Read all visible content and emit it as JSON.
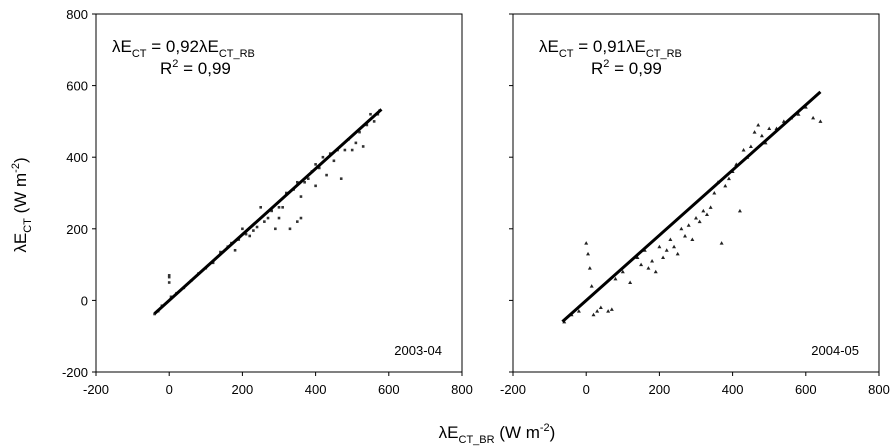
{
  "figure": {
    "ylabel": "λE",
    "ylabel_sub": "CT",
    "ylabel_unit": " (W m",
    "ylabel_unit_sup": "-2",
    "ylabel_close": ")",
    "xlabel": "λE",
    "xlabel_sub": "CT_BR",
    "xlabel_unit": " (W m",
    "xlabel_unit_sup": "-2",
    "xlabel_close": ")"
  },
  "chart_data": [
    {
      "type": "scatter",
      "title": "2003-04",
      "equation": {
        "lhs": "λE",
        "lhs_sub": "CT",
        "mid": " = 0,92λE",
        "rhs_sub": "CT_RB"
      },
      "r2": {
        "pre": "R",
        "sup": "2",
        "post": " = 0,99"
      },
      "xlim": [
        -200,
        800
      ],
      "ylim": [
        -200,
        800
      ],
      "xticks": [
        -200,
        0,
        200,
        400,
        600,
        800
      ],
      "yticks": [
        -200,
        0,
        200,
        400,
        600,
        800
      ],
      "fit_line": {
        "slope": 0.92,
        "x": [
          -40,
          580
        ]
      },
      "series": [
        {
          "marker": "dot",
          "points": [
            [
              -40,
              -38
            ],
            [
              -30,
              -30
            ],
            [
              -20,
              -15
            ],
            [
              0,
              65
            ],
            [
              0,
              70
            ],
            [
              0,
              50
            ],
            [
              5,
              10
            ],
            [
              20,
              20
            ],
            [
              40,
              35
            ],
            [
              60,
              55
            ],
            [
              80,
              75
            ],
            [
              100,
              90
            ],
            [
              120,
              105
            ],
            [
              140,
              135
            ],
            [
              160,
              150
            ],
            [
              170,
              160
            ],
            [
              180,
              140
            ],
            [
              190,
              170
            ],
            [
              200,
              200
            ],
            [
              210,
              185
            ],
            [
              220,
              180
            ],
            [
              230,
              195
            ],
            [
              240,
              205
            ],
            [
              250,
              260
            ],
            [
              260,
              220
            ],
            [
              270,
              230
            ],
            [
              280,
              250
            ],
            [
              290,
              200
            ],
            [
              300,
              260
            ],
            [
              300,
              230
            ],
            [
              310,
              260
            ],
            [
              320,
              300
            ],
            [
              330,
              200
            ],
            [
              340,
              310
            ],
            [
              350,
              330
            ],
            [
              350,
              220
            ],
            [
              360,
              290
            ],
            [
              360,
              230
            ],
            [
              370,
              330
            ],
            [
              380,
              340
            ],
            [
              390,
              360
            ],
            [
              400,
              380
            ],
            [
              400,
              320
            ],
            [
              410,
              370
            ],
            [
              420,
              400
            ],
            [
              430,
              350
            ],
            [
              440,
              410
            ],
            [
              450,
              390
            ],
            [
              460,
              420
            ],
            [
              470,
              340
            ],
            [
              480,
              420
            ],
            [
              490,
              450
            ],
            [
              500,
              420
            ],
            [
              510,
              440
            ],
            [
              520,
              470
            ],
            [
              530,
              430
            ],
            [
              540,
              490
            ],
            [
              550,
              520
            ],
            [
              560,
              500
            ],
            [
              570,
              520
            ],
            [
              575,
              530
            ]
          ]
        }
      ]
    },
    {
      "type": "scatter",
      "title": "2004-05",
      "equation": {
        "lhs": "λE",
        "lhs_sub": "CT",
        "mid": " = 0,91λE",
        "rhs_sub": "CT_RB"
      },
      "r2": {
        "pre": "R",
        "sup": "2",
        "post": " = 0,99"
      },
      "xlim": [
        -200,
        800
      ],
      "ylim": [
        -200,
        800
      ],
      "xticks": [
        -200,
        0,
        200,
        400,
        600,
        800
      ],
      "yticks": [
        -200,
        0,
        200,
        400,
        600,
        800
      ],
      "fit_line": {
        "slope": 0.91,
        "x": [
          -65,
          640
        ]
      },
      "series": [
        {
          "marker": "triangle",
          "points": [
            [
              -60,
              -60
            ],
            [
              -40,
              -40
            ],
            [
              -20,
              -30
            ],
            [
              0,
              160
            ],
            [
              5,
              130
            ],
            [
              10,
              90
            ],
            [
              15,
              40
            ],
            [
              20,
              -40
            ],
            [
              30,
              -30
            ],
            [
              40,
              -20
            ],
            [
              60,
              -30
            ],
            [
              70,
              -25
            ],
            [
              80,
              60
            ],
            [
              100,
              80
            ],
            [
              120,
              50
            ],
            [
              140,
              120
            ],
            [
              150,
              100
            ],
            [
              160,
              140
            ],
            [
              170,
              90
            ],
            [
              180,
              110
            ],
            [
              190,
              80
            ],
            [
              200,
              150
            ],
            [
              210,
              120
            ],
            [
              220,
              140
            ],
            [
              230,
              170
            ],
            [
              240,
              150
            ],
            [
              250,
              130
            ],
            [
              260,
              200
            ],
            [
              270,
              180
            ],
            [
              280,
              210
            ],
            [
              290,
              170
            ],
            [
              300,
              230
            ],
            [
              310,
              220
            ],
            [
              320,
              250
            ],
            [
              330,
              240
            ],
            [
              340,
              260
            ],
            [
              350,
              300
            ],
            [
              360,
              330
            ],
            [
              370,
              160
            ],
            [
              380,
              320
            ],
            [
              390,
              340
            ],
            [
              400,
              360
            ],
            [
              410,
              380
            ],
            [
              420,
              250
            ],
            [
              430,
              420
            ],
            [
              440,
              400
            ],
            [
              450,
              430
            ],
            [
              460,
              470
            ],
            [
              470,
              490
            ],
            [
              480,
              460
            ],
            [
              490,
              440
            ],
            [
              500,
              480
            ],
            [
              520,
              480
            ],
            [
              540,
              500
            ],
            [
              560,
              510
            ],
            [
              580,
              520
            ],
            [
              600,
              540
            ],
            [
              620,
              510
            ],
            [
              640,
              500
            ]
          ]
        }
      ]
    }
  ]
}
